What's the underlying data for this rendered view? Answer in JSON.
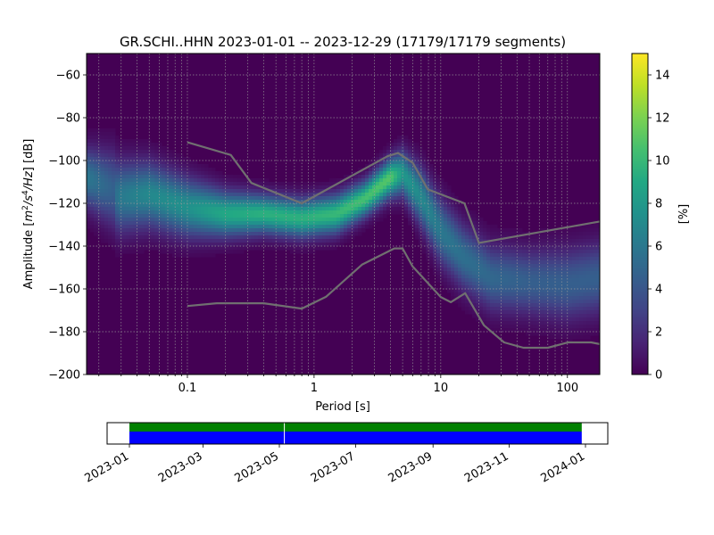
{
  "chart_data": [
    {
      "type": "heatmap",
      "title": "GR.SCHI..HHN   2023-01-01 -- 2023-12-29  (17179/17179 segments)",
      "xlabel": "Period [s]",
      "ylabel_parts": [
        "Amplitude [",
        "m",
        "2",
        "/",
        "s",
        "4",
        "/",
        "Hz",
        "] [dB]"
      ],
      "x_scale": "log",
      "xlim": [
        0.016,
        180
      ],
      "ylim": [
        -200,
        -50
      ],
      "x_ticks": [
        {
          "value": 0.1,
          "label": "0.1"
        },
        {
          "value": 1,
          "label": "1"
        },
        {
          "value": 10,
          "label": "10"
        },
        {
          "value": 100,
          "label": "100"
        }
      ],
      "y_ticks": [
        {
          "value": -60,
          "label": "−60"
        },
        {
          "value": -80,
          "label": "−80"
        },
        {
          "value": -100,
          "label": "−100"
        },
        {
          "value": -120,
          "label": "−120"
        },
        {
          "value": -140,
          "label": "−140"
        },
        {
          "value": -160,
          "label": "−160"
        },
        {
          "value": -180,
          "label": "−180"
        },
        {
          "value": -200,
          "label": "−200"
        }
      ],
      "grid": true,
      "colormap": "viridis",
      "colorbar": {
        "label": "[%]",
        "range": [
          0,
          15
        ],
        "ticks": [
          {
            "value": 0,
            "label": "0"
          },
          {
            "value": 2,
            "label": "2"
          },
          {
            "value": 4,
            "label": "4"
          },
          {
            "value": 6,
            "label": "6"
          },
          {
            "value": 8,
            "label": "8"
          },
          {
            "value": 10,
            "label": "10"
          },
          {
            "value": 12,
            "label": "12"
          },
          {
            "value": 14,
            "label": "14"
          }
        ]
      },
      "density_ridge": [
        {
          "period": 0.016,
          "center": -108,
          "width": 9,
          "peak": 6
        },
        {
          "period": 0.027,
          "center": -114,
          "width": 12,
          "peak": 4.5
        },
        {
          "period": 0.028,
          "center": -117,
          "width": 11,
          "peak": 6
        },
        {
          "period": 0.05,
          "center": -116,
          "width": 10,
          "peak": 7
        },
        {
          "period": 0.1,
          "center": -122,
          "width": 9,
          "peak": 7.5
        },
        {
          "period": 0.2,
          "center": -125,
          "width": 7,
          "peak": 9
        },
        {
          "period": 0.4,
          "center": -125,
          "width": 6,
          "peak": 9.5
        },
        {
          "period": 0.8,
          "center": -127,
          "width": 6,
          "peak": 9.5
        },
        {
          "period": 1.5,
          "center": -125,
          "width": 6,
          "peak": 10
        },
        {
          "period": 2.5,
          "center": -118,
          "width": 5.5,
          "peak": 10.5
        },
        {
          "period": 4,
          "center": -108,
          "width": 6,
          "peak": 11
        },
        {
          "period": 5,
          "center": -106,
          "width": 7,
          "peak": 8
        },
        {
          "period": 7,
          "center": -117,
          "width": 9,
          "peak": 7
        },
        {
          "period": 10,
          "center": -133,
          "width": 10,
          "peak": 6
        },
        {
          "period": 15,
          "center": -145,
          "width": 10,
          "peak": 5.5
        },
        {
          "period": 25,
          "center": -155,
          "width": 10,
          "peak": 5
        },
        {
          "period": 50,
          "center": -157,
          "width": 10,
          "peak": 4.5
        },
        {
          "period": 100,
          "center": -158,
          "width": 11,
          "peak": 4.5
        },
        {
          "period": 180,
          "center": -155,
          "width": 11,
          "peak": 4.5
        }
      ],
      "series": [
        {
          "name": "",
          "role": "upper noise model",
          "color": "#707070",
          "points": [
            [
              0.1,
              -91.5
            ],
            [
              0.22,
              -97.4
            ],
            [
              0.32,
              -110.5
            ],
            [
              0.8,
              -120
            ],
            [
              3.8,
              -98
            ],
            [
              4.6,
              -96.5
            ],
            [
              6,
              -101
            ],
            [
              7.9,
              -113.5
            ],
            [
              15.4,
              -120
            ],
            [
              20,
              -138.5
            ],
            [
              180,
              -128.5
            ]
          ]
        },
        {
          "name": "",
          "role": "lower noise model",
          "color": "#707070",
          "points": [
            [
              0.1,
              -168
            ],
            [
              0.17,
              -166.7
            ],
            [
              0.4,
              -166.7
            ],
            [
              0.8,
              -169.2
            ],
            [
              1.24,
              -163.7
            ],
            [
              2.4,
              -148.6
            ],
            [
              4.3,
              -141.1
            ],
            [
              5,
              -141.1
            ],
            [
              6,
              -149.5
            ],
            [
              10,
              -163.8
            ],
            [
              12,
              -166.2
            ],
            [
              15.6,
              -162
            ],
            [
              21.9,
              -177
            ],
            [
              31.6,
              -185
            ],
            [
              45,
              -187.5
            ],
            [
              70,
              -187.5
            ],
            [
              101,
              -185
            ],
            [
              154,
              -185
            ],
            [
              180,
              -185.8
            ]
          ]
        }
      ]
    },
    {
      "type": "timeline",
      "xlim": [
        "2023-01-01",
        "2024-01-01"
      ],
      "data_coverage": [
        {
          "start": "2023-01-01",
          "end": "2023-12-29",
          "color": "#0000ff"
        }
      ],
      "processed_segments": [
        {
          "start": "2023-01-01",
          "end": "2023-05-05",
          "color": "#008000"
        },
        {
          "start": "2023-05-05",
          "end": "2023-12-29",
          "color": "#008000"
        }
      ],
      "x_ticks": [
        {
          "value": "2023-01-01",
          "label": "2023-01"
        },
        {
          "value": "2023-03-01",
          "label": "2023-03"
        },
        {
          "value": "2023-05-01",
          "label": "2023-05"
        },
        {
          "value": "2023-07-01",
          "label": "2023-07"
        },
        {
          "value": "2023-09-01",
          "label": "2023-09"
        },
        {
          "value": "2023-11-01",
          "label": "2023-11"
        },
        {
          "value": "2024-01-01",
          "label": "2024-01"
        }
      ]
    }
  ]
}
